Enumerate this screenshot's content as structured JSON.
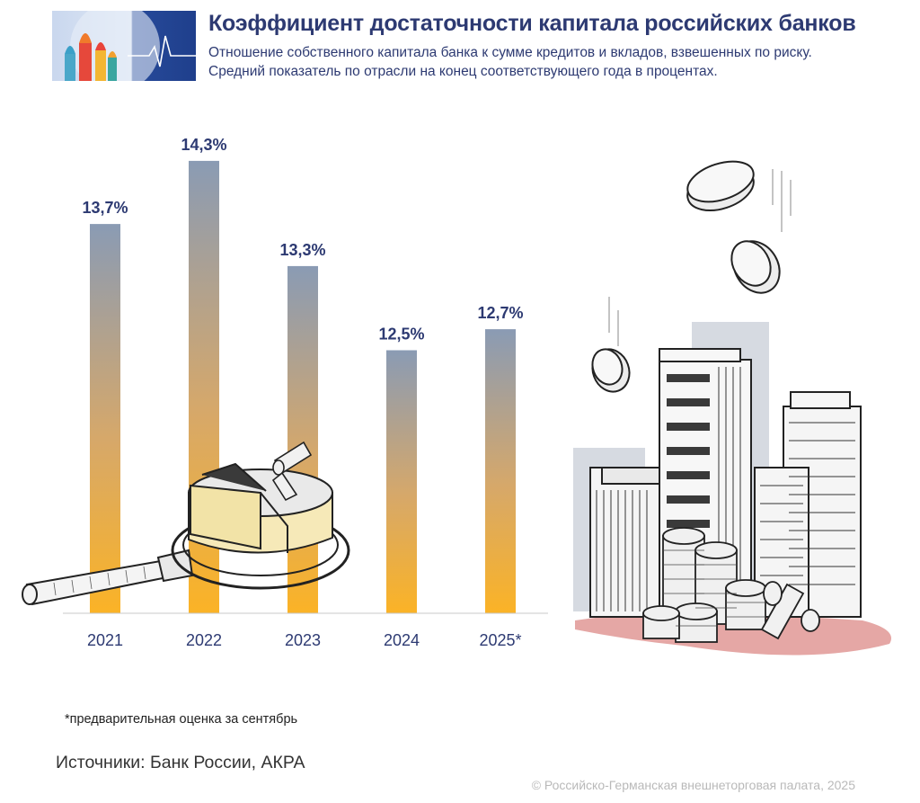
{
  "header": {
    "title": "Коэффициент достаточности капитала российских банков",
    "subtitle_line1": "Отношение собственного капитала банка к сумме кредитов и вкладов, взвешенных по риску.",
    "subtitle_line2": "Средний показатель по отрасли на конец соответствующего года в процентах."
  },
  "chart_data": {
    "type": "bar",
    "categories": [
      "2021",
      "2022",
      "2023",
      "2024",
      "2025*"
    ],
    "values": [
      13.7,
      14.3,
      13.3,
      12.5,
      12.7
    ],
    "value_labels": [
      "13,7%",
      "14,3%",
      "13,3%",
      "12,5%",
      "12,7%"
    ],
    "title": "Коэффициент достаточности капитала российских банков",
    "xlabel": "",
    "ylabel": "",
    "grid": false,
    "colors": {
      "bar_top": "#8a9bb4",
      "bar_bottom": "#fbb326",
      "label": "#2d3a72"
    }
  },
  "footnote": "*предварительная оценка за сентябрь",
  "sources": "Источники: Банк России, АКРА",
  "copyright": "© Российско-Германская внешнеторговая палата, 2025",
  "illustrations": {
    "logo_icon": "moscow-domes-heartbeat-logo",
    "left": "magnifier-cheese-icon",
    "right": "skyscrapers-coins-icon"
  }
}
